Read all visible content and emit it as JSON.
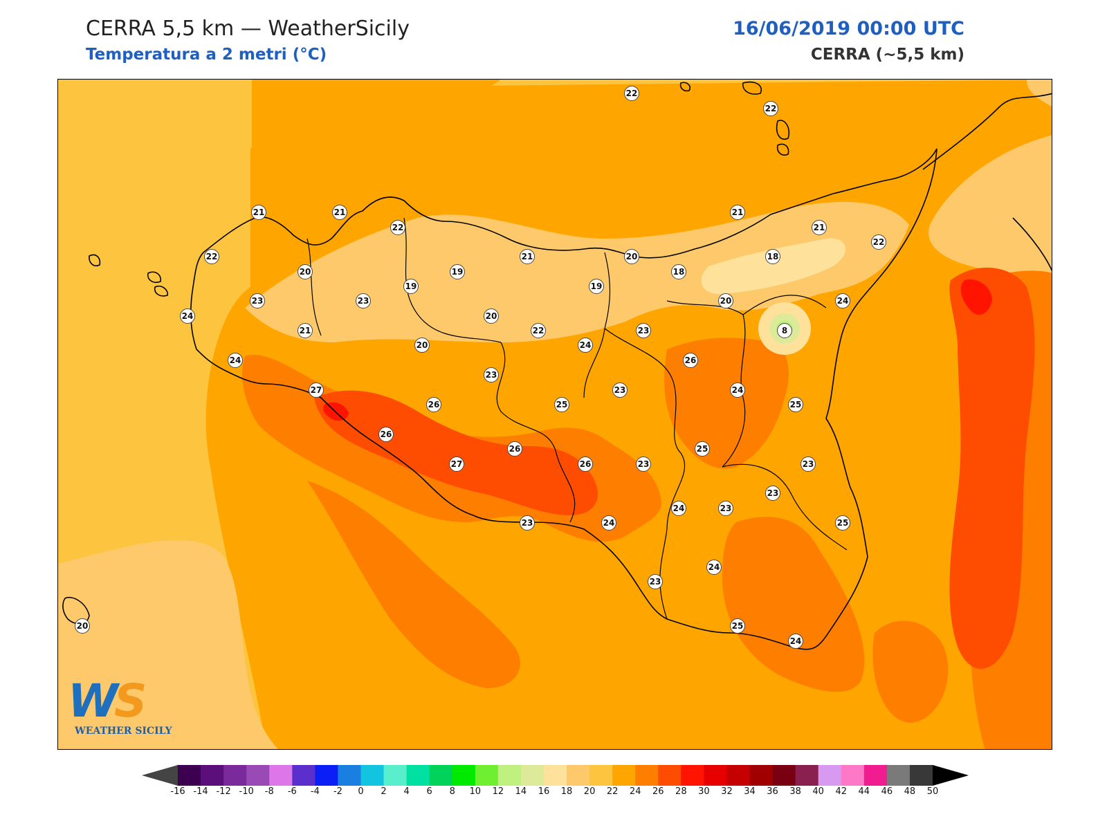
{
  "header": {
    "title": "CERRA 5,5 km — WeatherSicily",
    "subtitle": "Temperatura a 2 metri (°C)",
    "datetime": "16/06/2019 00:00 UTC",
    "model": "CERRA (~5,5 km)"
  },
  "logo": {
    "letters_main": "W",
    "letters_accent": "S",
    "brand": "WEATHER SICILY"
  },
  "colors": {
    "c18": "#fee19a",
    "c20": "#fdc96a",
    "c22": "#fdc440",
    "c24": "#fea500",
    "c26": "#fe7f00",
    "c28": "#fe4d00",
    "c30": "#fe1400",
    "coast": "#000000"
  },
  "stations": [
    {
      "v": "22"
    },
    {
      "v": "22"
    },
    {
      "v": "21"
    },
    {
      "v": "21"
    },
    {
      "v": "22"
    },
    {
      "v": "22"
    },
    {
      "v": "20"
    },
    {
      "v": "19"
    },
    {
      "v": "19"
    },
    {
      "v": "21"
    },
    {
      "v": "20"
    },
    {
      "v": "18"
    },
    {
      "v": "18"
    },
    {
      "v": "21"
    },
    {
      "v": "21"
    },
    {
      "v": "22"
    },
    {
      "v": "23"
    },
    {
      "v": "23"
    },
    {
      "v": "19"
    },
    {
      "v": "20"
    },
    {
      "v": "20"
    },
    {
      "v": "24"
    },
    {
      "v": "21"
    },
    {
      "v": "24"
    },
    {
      "v": "20"
    },
    {
      "v": "22"
    },
    {
      "v": "24"
    },
    {
      "v": "23"
    },
    {
      "v": "8"
    },
    {
      "v": "26"
    },
    {
      "v": "27"
    },
    {
      "v": "24"
    },
    {
      "v": "23"
    },
    {
      "v": "26"
    },
    {
      "v": "25"
    },
    {
      "v": "23"
    },
    {
      "v": "24"
    },
    {
      "v": "25"
    },
    {
      "v": "26"
    },
    {
      "v": "25"
    },
    {
      "v": "26"
    },
    {
      "v": "26"
    },
    {
      "v": "27"
    },
    {
      "v": "23"
    },
    {
      "v": "23"
    },
    {
      "v": "23"
    },
    {
      "v": "24"
    },
    {
      "v": "23"
    },
    {
      "v": "23"
    },
    {
      "v": "25"
    },
    {
      "v": "24"
    },
    {
      "v": "23"
    },
    {
      "v": "24"
    },
    {
      "v": "25"
    },
    {
      "v": "24"
    },
    {
      "v": "20"
    }
  ],
  "colorbar": {
    "levels": [
      "-16",
      "-14",
      "-12",
      "-10",
      "-8",
      "-6",
      "-4",
      "-2",
      "0",
      "2",
      "4",
      "6",
      "8",
      "10",
      "12",
      "14",
      "16",
      "18",
      "20",
      "22",
      "24",
      "26",
      "28",
      "30",
      "32",
      "34",
      "36",
      "38",
      "40",
      "42",
      "44",
      "46",
      "48",
      "50"
    ],
    "colors": [
      "#3d0050",
      "#5a0f7a",
      "#7a2a9a",
      "#9a4ab5",
      "#dd77e8",
      "#5a2fcc",
      "#0a1ef5",
      "#1a7fe0",
      "#12c4e0",
      "#5aefcc",
      "#00e0a0",
      "#00d25a",
      "#00ea00",
      "#70ee30",
      "#c0f080",
      "#dcea9a",
      "#fee19a",
      "#fdc96a",
      "#fdc440",
      "#fea500",
      "#fe7f00",
      "#fe4d00",
      "#fe1400",
      "#e60000",
      "#c40000",
      "#a00000",
      "#780010",
      "#8a2050",
      "#d89af0",
      "#fe78c8",
      "#f01c90",
      "#7a7a7a",
      "#383838"
    ],
    "under_color": "#444444",
    "over_color": "#000000"
  }
}
